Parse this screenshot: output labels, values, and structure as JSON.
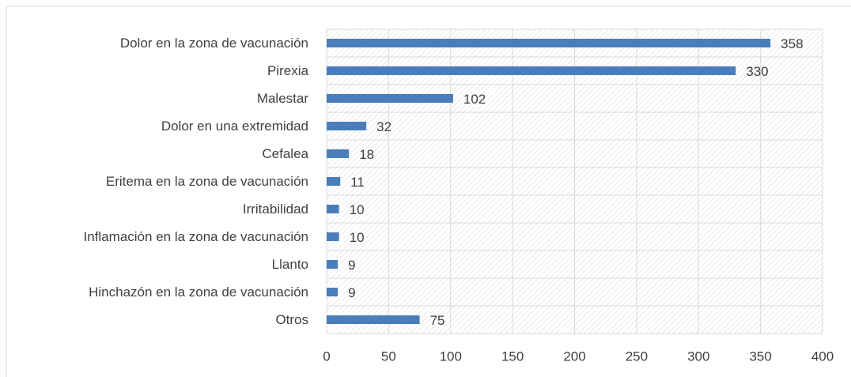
{
  "chart_data": {
    "type": "bar",
    "orientation": "horizontal",
    "categories": [
      "Dolor en la zona de vacunación",
      "Pirexia",
      "Malestar",
      "Dolor en una extremidad",
      "Cefalea",
      "Eritema en la zona de vacunación",
      "Irritabilidad",
      "Inflamación en la zona de vacunación",
      "Llanto",
      "Hinchazón en la zona de vacunación",
      "Otros"
    ],
    "values": [
      358,
      330,
      102,
      32,
      18,
      11,
      10,
      10,
      9,
      9,
      75
    ],
    "color": "#4a7ebb",
    "xlim": [
      0,
      400
    ],
    "xticks": [
      0,
      50,
      100,
      150,
      200,
      250,
      300,
      350,
      400
    ],
    "grid": true
  }
}
